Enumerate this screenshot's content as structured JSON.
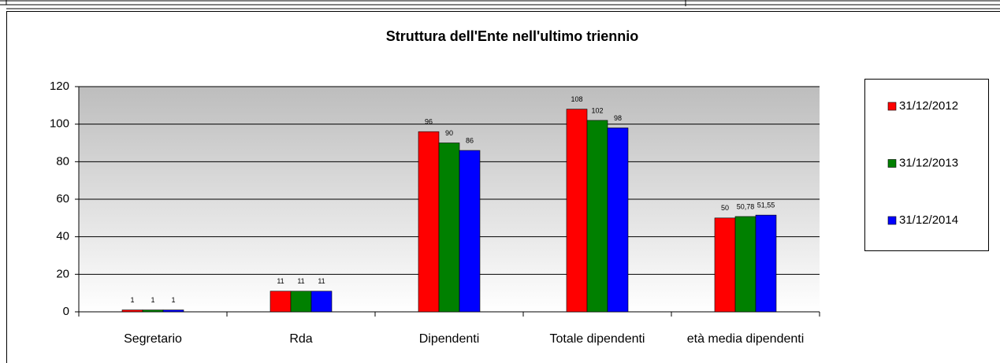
{
  "chart_data": {
    "type": "bar",
    "title": "Struttura dell'Ente nell'ultimo triennio",
    "categories": [
      "Segretario",
      "Rda",
      "Dipendenti",
      "Totale dipendenti",
      "età media dipendenti"
    ],
    "series": [
      {
        "name": "31/12/2012",
        "color": "#ff0000",
        "values": [
          1,
          11,
          96,
          108,
          50
        ]
      },
      {
        "name": "31/12/2013",
        "color": "#008000",
        "values": [
          1,
          11,
          90,
          102,
          50.78
        ],
        "value_labels": [
          "1",
          "11",
          "90",
          "102",
          "50,78"
        ]
      },
      {
        "name": "31/12/2014",
        "color": "#0000ff",
        "values": [
          1,
          11,
          86,
          98,
          51.55
        ],
        "value_labels": [
          "1",
          "11",
          "86",
          "98",
          "51,55"
        ]
      }
    ],
    "ylim": [
      0,
      120
    ],
    "yticks": [
      0,
      20,
      40,
      60,
      80,
      100,
      120
    ],
    "grid": true,
    "legend": "right"
  }
}
